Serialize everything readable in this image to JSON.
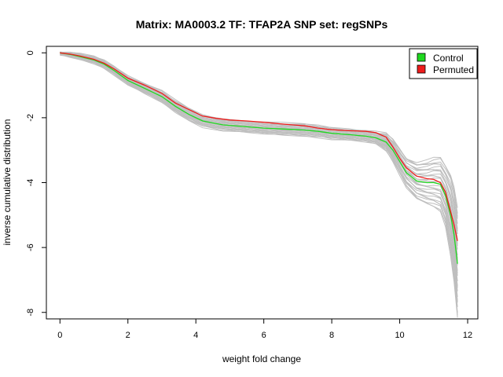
{
  "chart_data": {
    "type": "line",
    "title": "Matrix: MA0003.2 TF: TFAP2A SNP set: regSNPs",
    "xlabel": "weight fold change",
    "ylabel": "inverse cumulative distribution",
    "xlim": [
      -0.4,
      12.3
    ],
    "ylim": [
      -8.2,
      0.2
    ],
    "xticks": [
      "0",
      "2",
      "4",
      "6",
      "8",
      "10",
      "12"
    ],
    "yticks": [
      "0",
      "-2",
      "-4",
      "-6",
      "-8"
    ],
    "legend_position": "top-right",
    "background_band": {
      "name": "",
      "color": "#bebebe",
      "count_visible": 30,
      "note": "many grey permutation/background curves surrounding the main series"
    },
    "series": [
      {
        "name": "Control",
        "color": "#1fd81f",
        "x": [
          0.0,
          0.3,
          0.6,
          1.0,
          1.3,
          1.6,
          2.0,
          2.5,
          3.0,
          3.4,
          3.8,
          4.2,
          4.8,
          5.5,
          6.0,
          6.6,
          7.2,
          7.6,
          8.0,
          8.5,
          9.0,
          9.3,
          9.6,
          9.8,
          10.0,
          10.2,
          10.5,
          10.8,
          11.0,
          11.2,
          11.35,
          11.5,
          11.6,
          11.7
        ],
        "y": [
          0.0,
          -0.05,
          -0.12,
          -0.22,
          -0.35,
          -0.55,
          -0.85,
          -1.1,
          -1.35,
          -1.65,
          -1.9,
          -2.1,
          -2.22,
          -2.28,
          -2.32,
          -2.35,
          -2.38,
          -2.42,
          -2.48,
          -2.52,
          -2.57,
          -2.62,
          -2.75,
          -3.0,
          -3.35,
          -3.7,
          -3.95,
          -4.0,
          -4.0,
          -4.05,
          -4.4,
          -5.0,
          -5.6,
          -6.5
        ]
      },
      {
        "name": "Permuted",
        "color": "#ee1c1c",
        "x": [
          0.0,
          0.3,
          0.6,
          1.0,
          1.3,
          1.6,
          2.0,
          2.5,
          3.0,
          3.4,
          3.8,
          4.2,
          4.6,
          5.0,
          5.5,
          6.0,
          6.6,
          7.2,
          7.6,
          8.0,
          8.5,
          9.0,
          9.3,
          9.6,
          9.8,
          10.0,
          10.2,
          10.5,
          10.8,
          11.0,
          11.2,
          11.35,
          11.5,
          11.6,
          11.7
        ],
        "y": [
          0.0,
          -0.04,
          -0.1,
          -0.2,
          -0.32,
          -0.5,
          -0.78,
          -1.0,
          -1.25,
          -1.55,
          -1.75,
          -1.95,
          -2.02,
          -2.07,
          -2.1,
          -2.14,
          -2.2,
          -2.25,
          -2.32,
          -2.37,
          -2.4,
          -2.42,
          -2.46,
          -2.6,
          -2.9,
          -3.25,
          -3.55,
          -3.8,
          -3.88,
          -3.9,
          -4.0,
          -4.3,
          -4.9,
          -5.3,
          -5.8
        ]
      }
    ]
  }
}
